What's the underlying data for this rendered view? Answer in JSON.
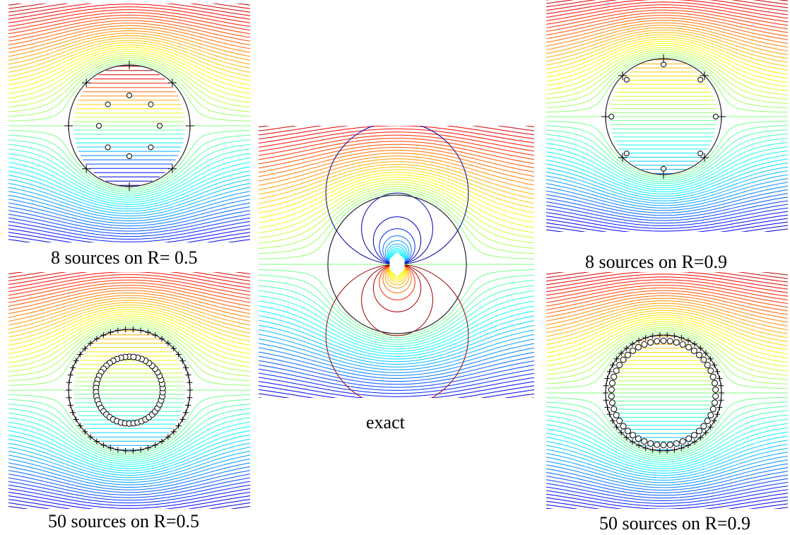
{
  "panels": [
    {
      "id": "p8_05",
      "caption": "8 sources on R= 0.5",
      "source_count": 8,
      "source_radius": 0.5,
      "marker_radius": 0.9,
      "colocation_count": 8,
      "colocation_radius": 1.0,
      "kind": "approx"
    },
    {
      "id": "p50_05",
      "caption": "50 sources on R=0.5",
      "source_count": 50,
      "source_radius": 0.5,
      "marker_radius": 0.55,
      "colocation_count": 50,
      "colocation_radius": 1.0,
      "kind": "approx"
    },
    {
      "id": "exact",
      "caption": "exact",
      "kind": "exact"
    },
    {
      "id": "p8_09",
      "caption": "8 sources on R=0.9",
      "source_count": 8,
      "source_radius": 0.9,
      "marker_radius": 0.9,
      "colocation_count": 8,
      "colocation_radius": 1.0,
      "kind": "approx"
    },
    {
      "id": "p50_09",
      "caption": "50 sources on R=0.9",
      "source_count": 50,
      "source_radius": 0.9,
      "marker_radius": 0.9,
      "colocation_count": 50,
      "colocation_radius": 1.0,
      "kind": "approx"
    }
  ],
  "colormap": [
    "#00008f",
    "#0000ff",
    "#0080ff",
    "#00ffff",
    "#80ff80",
    "#ffff00",
    "#ff8000",
    "#ff0000",
    "#800000"
  ]
}
